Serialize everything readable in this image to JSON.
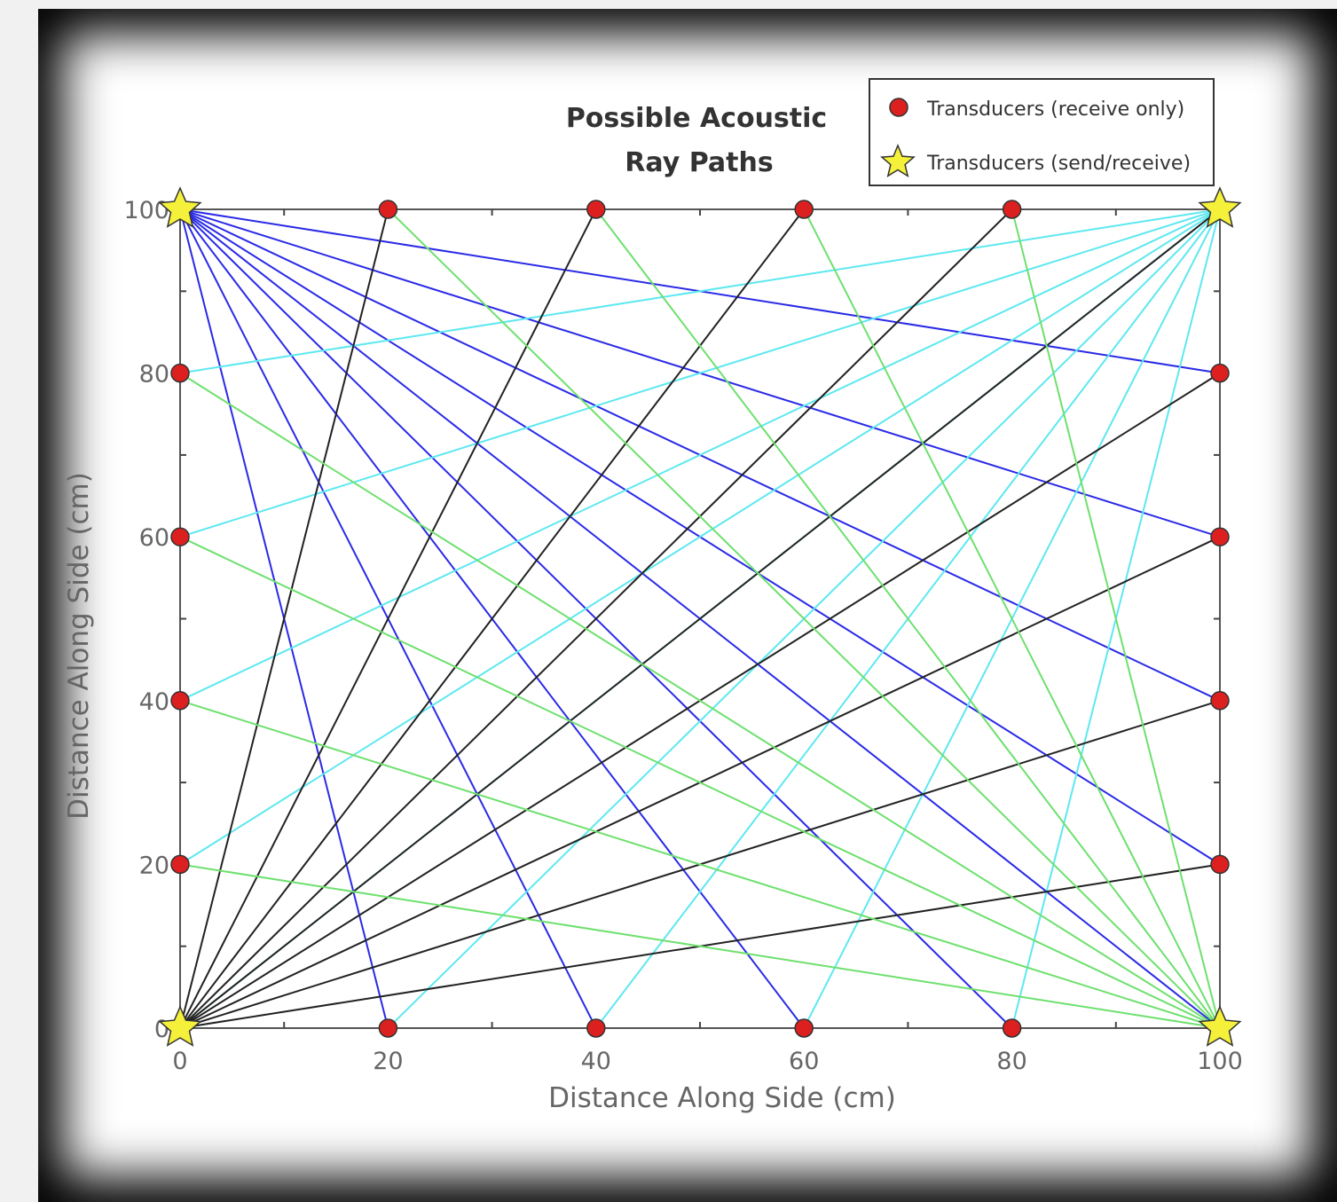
{
  "chart_data": {
    "type": "scatter",
    "title": [
      "Possible Acoustic",
      "Ray Paths"
    ],
    "xlabel": "Distance Along Side (cm)",
    "ylabel": "Distance Along Side (cm)",
    "xlim": [
      0,
      100
    ],
    "ylim": [
      0,
      100
    ],
    "xticks": [
      0,
      20,
      40,
      60,
      80,
      100
    ],
    "yticks": [
      0,
      20,
      40,
      60,
      80,
      100
    ],
    "grid": false,
    "legend_position": "top-right",
    "series": [
      {
        "name": "Transducers (receive only)",
        "marker": "circle",
        "color": "#dc2020",
        "points": [
          [
            20,
            100
          ],
          [
            40,
            100
          ],
          [
            60,
            100
          ],
          [
            80,
            100
          ],
          [
            20,
            0
          ],
          [
            40,
            0
          ],
          [
            60,
            0
          ],
          [
            80,
            0
          ],
          [
            0,
            20
          ],
          [
            0,
            40
          ],
          [
            0,
            60
          ],
          [
            0,
            80
          ],
          [
            100,
            20
          ],
          [
            100,
            40
          ],
          [
            100,
            60
          ],
          [
            100,
            80
          ]
        ]
      },
      {
        "name": "Transducers (send/receive)",
        "marker": "star",
        "color": "#f5f03a",
        "points": [
          [
            0,
            100
          ],
          [
            100,
            100
          ],
          [
            0,
            0
          ],
          [
            100,
            0
          ]
        ]
      }
    ],
    "ray_groups": [
      {
        "source": [
          0,
          100
        ],
        "color": "#2a2ae6",
        "targets": [
          [
            20,
            0
          ],
          [
            40,
            0
          ],
          [
            60,
            0
          ],
          [
            80,
            0
          ],
          [
            100,
            0
          ],
          [
            100,
            20
          ],
          [
            100,
            40
          ],
          [
            100,
            60
          ],
          [
            100,
            80
          ]
        ]
      },
      {
        "source": [
          100,
          100
        ],
        "color": "#5de8f0",
        "targets": [
          [
            0,
            80
          ],
          [
            0,
            60
          ],
          [
            0,
            40
          ],
          [
            0,
            20
          ],
          [
            0,
            0
          ],
          [
            20,
            0
          ],
          [
            40,
            0
          ],
          [
            60,
            0
          ],
          [
            80,
            0
          ]
        ]
      },
      {
        "source": [
          0,
          0
        ],
        "color": "#222222",
        "targets": [
          [
            20,
            100
          ],
          [
            40,
            100
          ],
          [
            60,
            100
          ],
          [
            80,
            100
          ],
          [
            100,
            100
          ],
          [
            100,
            80
          ],
          [
            100,
            60
          ],
          [
            100,
            40
          ],
          [
            100,
            20
          ]
        ]
      },
      {
        "source": [
          100,
          0
        ],
        "color": "#6ee06e",
        "targets": [
          [
            20,
            100
          ],
          [
            40,
            100
          ],
          [
            60,
            100
          ],
          [
            80,
            100
          ],
          [
            0,
            80
          ],
          [
            0,
            60
          ],
          [
            0,
            40
          ],
          [
            0,
            20
          ],
          [
            0,
            0
          ]
        ]
      }
    ]
  }
}
